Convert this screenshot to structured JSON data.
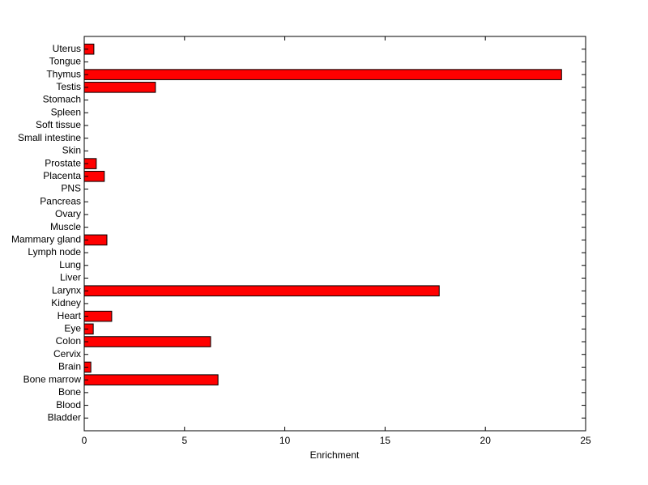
{
  "chart_data": {
    "type": "barh",
    "categories": [
      "Bladder",
      "Blood",
      "Bone",
      "Bone marrow",
      "Brain",
      "Cervix",
      "Colon",
      "Eye",
      "Heart",
      "Kidney",
      "Larynx",
      "Liver",
      "Lung",
      "Lymph node",
      "Mammary gland",
      "Muscle",
      "Ovary",
      "Pancreas",
      "PNS",
      "Placenta",
      "Prostate",
      "Skin",
      "Small intestine",
      "Soft tissue",
      "Spleen",
      "Stomach",
      "Testis",
      "Thymus",
      "Tongue",
      "Uterus"
    ],
    "values": [
      0,
      0,
      0,
      6.67,
      0.33,
      0,
      6.3,
      0.45,
      1.37,
      0,
      17.7,
      0,
      0,
      0,
      1.13,
      0,
      0,
      0,
      0,
      1.0,
      0.6,
      0,
      0,
      0,
      0,
      0,
      3.55,
      23.8,
      0,
      0.48
    ],
    "color": "#ff0000",
    "xlabel": "Enrichment",
    "xlim": [
      0,
      25
    ],
    "xticks": [
      0,
      5,
      10,
      15,
      20,
      25
    ]
  }
}
